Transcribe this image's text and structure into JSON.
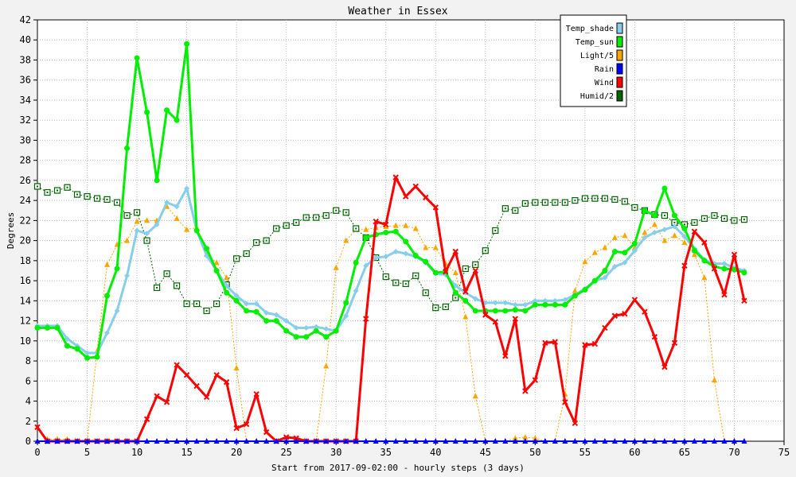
{
  "chart_data": {
    "type": "line",
    "title": "Weather in Essex",
    "xlabel": "Start from 2017-09-02:00 - hourly steps (3 days)",
    "ylabel": "Degrees",
    "xlim": [
      0,
      75
    ],
    "ylim": [
      0,
      42
    ],
    "xticks": [
      0,
      5,
      10,
      15,
      20,
      25,
      30,
      35,
      40,
      45,
      50,
      55,
      60,
      65,
      70,
      75
    ],
    "yticks": [
      0,
      2,
      4,
      6,
      8,
      10,
      12,
      14,
      16,
      18,
      20,
      22,
      24,
      26,
      28,
      30,
      32,
      34,
      36,
      38,
      40,
      42
    ],
    "grid": true,
    "legend_position": "top-right",
    "series": [
      {
        "name": "Temp_shade",
        "color": "#87ceeb",
        "marker": "diamond",
        "line_style": "solid",
        "line_width": 3,
        "values": [
          11.5,
          11.5,
          11.5,
          10.2,
          9.5,
          8.8,
          8.8,
          10.8,
          13,
          16.5,
          21,
          20.7,
          21.6,
          23.8,
          23.4,
          25.2,
          21,
          18.5,
          17,
          15.5,
          14.5,
          13.7,
          13.7,
          12.8,
          12.6,
          12,
          11.3,
          11.3,
          11.4,
          11.2,
          11,
          12.5,
          15,
          17.5,
          18.3,
          18.4,
          18.9,
          18.7,
          18.4,
          17.8,
          16.7,
          16.6,
          15.5,
          14.8,
          14.2,
          13.8,
          13.8,
          13.8,
          13.6,
          13.6,
          14,
          14,
          14,
          14.1,
          14.6,
          15.2,
          16,
          16.3,
          17.4,
          17.8,
          19,
          20.3,
          20.8,
          21.1,
          21.4,
          20.4,
          19.2,
          18.1,
          17.7,
          17.7,
          17.3,
          17
        ]
      },
      {
        "name": "Temp_sun",
        "color": "#00ee00",
        "marker": "circle",
        "line_style": "solid",
        "line_width": 3,
        "values": [
          11.3,
          11.3,
          11.3,
          9.5,
          9.2,
          8.3,
          8.4,
          14.5,
          17.2,
          29.2,
          38.2,
          32.8,
          26,
          33,
          32,
          39.6,
          21,
          19.2,
          17,
          14.8,
          14,
          13,
          12.9,
          12,
          12,
          11,
          10.4,
          10.4,
          11,
          10.4,
          11,
          13.8,
          17.8,
          20.3,
          20.6,
          20.8,
          20.9,
          19.9,
          18.5,
          17.9,
          16.8,
          16.9,
          14.8,
          14,
          13,
          13,
          13,
          13,
          13.1,
          13,
          13.6,
          13.6,
          13.6,
          13.6,
          14.5,
          15.1,
          16,
          17,
          18.9,
          18.8,
          19.7,
          23,
          22.5,
          25.2,
          22.5,
          21.2,
          19,
          18,
          17.4,
          17.2,
          17.1,
          16.8
        ]
      },
      {
        "name": "Light/5",
        "color": "#ffa500",
        "marker": "triangle",
        "line_style": "dotted",
        "line_width": 1,
        "values": [
          0,
          0.2,
          0.2,
          0.2,
          0,
          0,
          9,
          17.6,
          19.6,
          20,
          21.9,
          22,
          22,
          23.4,
          22.2,
          21.1,
          21.3,
          18.6,
          17.8,
          16.3,
          7.3,
          0,
          0,
          0,
          0,
          0,
          0,
          0,
          0,
          7.5,
          17.3,
          20,
          21.1,
          21.1,
          21.3,
          21.4,
          21.5,
          21.5,
          21.2,
          19.3,
          19.3,
          17.7,
          16.8,
          12.4,
          4.5,
          0,
          0,
          0,
          0.3,
          0.4,
          0.3,
          0,
          0,
          4.7,
          15,
          17.9,
          18.8,
          19.3,
          20.3,
          20.5,
          19.3,
          20.8,
          21.6,
          20,
          20.5,
          19.8,
          18.6,
          16.3,
          6.1,
          0,
          0,
          0
        ]
      },
      {
        "name": "Rain",
        "color": "#0000ff",
        "marker": "triangle",
        "line_style": "solid",
        "line_width": 2,
        "values": [
          0,
          0,
          0,
          0,
          0,
          0,
          0,
          0,
          0,
          0,
          0,
          0,
          0,
          0,
          0,
          0,
          0,
          0,
          0,
          0,
          0,
          0,
          0,
          0,
          0,
          0,
          0,
          0,
          0,
          0,
          0,
          0,
          0,
          0,
          0,
          0,
          0,
          0,
          0,
          0,
          0,
          0,
          0,
          0,
          0,
          0,
          0,
          0,
          0,
          0,
          0,
          0,
          0,
          0,
          0,
          0,
          0,
          0,
          0,
          0,
          0,
          0,
          0,
          0,
          0,
          0,
          0,
          0,
          0,
          0,
          0,
          0
        ]
      },
      {
        "name": "Wind",
        "color": "#ff0000",
        "marker": "x",
        "line_style": "solid",
        "line_width": 3,
        "values": [
          1.4,
          0,
          0,
          0,
          0,
          0,
          0,
          0,
          0,
          0,
          0,
          2.2,
          4.5,
          3.9,
          7.6,
          6.6,
          5.5,
          4.4,
          6.6,
          5.9,
          1.3,
          1.7,
          4.7,
          0.9,
          0,
          0.4,
          0.3,
          0,
          0,
          0,
          0,
          0,
          0,
          12.2,
          21.9,
          21.6,
          26.3,
          24.4,
          25.4,
          24.3,
          23.3,
          16.9,
          18.9,
          14.9,
          17,
          12.6,
          11.9,
          8.5,
          12.2,
          5,
          6.1,
          9.8,
          9.9,
          3.9,
          1.8,
          9.6,
          9.7,
          11.3,
          12.5,
          12.7,
          14.1,
          12.9,
          10.4,
          7.4,
          9.8,
          17.5,
          20.9,
          19.8,
          17.2,
          14.6,
          18.6,
          14
        ]
      },
      {
        "name": "Humid/2",
        "color": "#006400",
        "marker": "square-open",
        "line_style": "dotted",
        "line_width": 1,
        "values": [
          25.4,
          24.8,
          25,
          25.3,
          24.6,
          24.4,
          24.2,
          24.1,
          23.8,
          22.5,
          22.8,
          20,
          15.3,
          16.7,
          15.5,
          13.7,
          13.7,
          13,
          13.7,
          15.6,
          18.2,
          18.7,
          19.8,
          20,
          21.2,
          21.5,
          21.8,
          22.3,
          22.3,
          22.5,
          23,
          22.8,
          21.2,
          20.3,
          18.3,
          16.4,
          15.8,
          15.7,
          16.5,
          14.8,
          13.3,
          13.4,
          14.3,
          17.2,
          17.6,
          19,
          21,
          23.2,
          23,
          23.7,
          23.8,
          23.8,
          23.8,
          23.8,
          24,
          24.2,
          24.2,
          24.2,
          24.1,
          23.9,
          23.3,
          23,
          22.6,
          22.5,
          21.8,
          21.6,
          21.8,
          22.2,
          22.5,
          22.2,
          22,
          22.1
        ]
      }
    ]
  }
}
